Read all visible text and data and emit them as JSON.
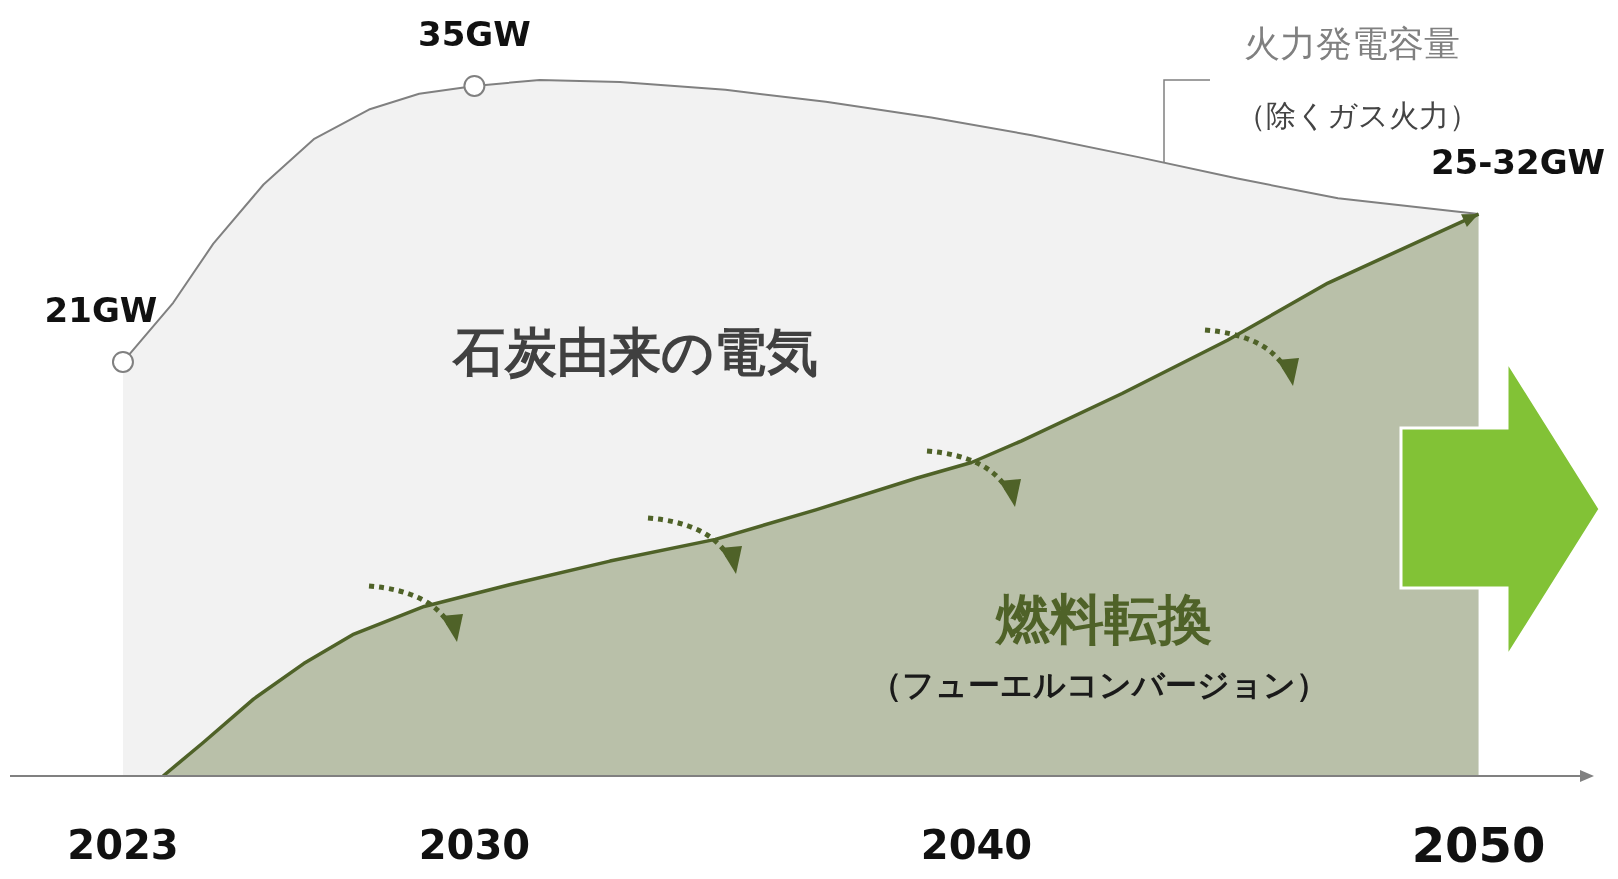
{
  "chart_data": {
    "type": "area",
    "xlim": [
      2020.75,
      2052.3
    ],
    "xticks": [
      2023,
      2030,
      2040,
      2050
    ],
    "tick_labels": "x",
    "series": [
      {
        "name": "火力発電容量",
        "color": "#808080",
        "x": [
          2023,
          2024.0,
          2024.8,
          2025.8,
          2026.8,
          2027.9,
          2028.9,
          2030,
          2031.3,
          2032.9,
          2035,
          2037,
          2039.1,
          2041.1,
          2043.2,
          2045.2,
          2047.2,
          2050
        ],
        "values": [
          21,
          24,
          27,
          30,
          32.3,
          33.8,
          34.6,
          35,
          35.3,
          35.2,
          34.8,
          34.2,
          33.4,
          32.5,
          31.4,
          30.3,
          29.3,
          28.5
        ],
        "value_labels": [
          "21GW",
          null,
          null,
          null,
          null,
          null,
          null,
          "35GW",
          null,
          null,
          null,
          null,
          null,
          null,
          null,
          null,
          null,
          "25-32GW"
        ]
      },
      {
        "name": "燃料転換",
        "color": "#4f6228",
        "x": [
          2023.8,
          2024.6,
          2025.6,
          2026.6,
          2027.6,
          2029.0,
          2030.7,
          2032.7,
          2034.8,
          2036.8,
          2038.8,
          2039.9,
          2040.9,
          2042.9,
          2045.0,
          2047.0,
          2050
        ],
        "values": [
          0,
          1.7,
          3.9,
          5.7,
          7.2,
          8.6,
          9.7,
          10.9,
          12.0,
          13.5,
          15.1,
          15.9,
          17.0,
          19.4,
          22.1,
          25.0,
          28.5
        ]
      }
    ],
    "annotations": [
      "（除くガス火力）",
      "石炭由来の電気",
      "（フューエルコンバージョン）"
    ]
  }
}
